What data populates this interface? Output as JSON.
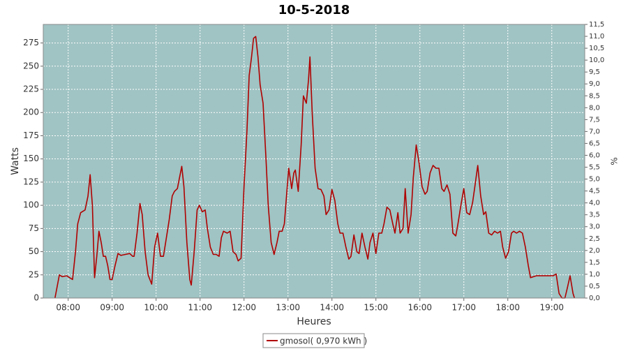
{
  "chart_data": {
    "type": "line",
    "title": "10-5-2018",
    "xlabel": "Heures",
    "ylabel": "Watts",
    "y2label": "%",
    "background": "#a0c3c3",
    "grid": true,
    "legend": "bottom",
    "xlim": [
      "07:26",
      "19:45"
    ],
    "xticks": [
      "08:00",
      "09:00",
      "10:00",
      "11:00",
      "12:00",
      "13:00",
      "14:00",
      "15:00",
      "16:00",
      "17:00",
      "18:00",
      "19:00"
    ],
    "ylim": [
      0,
      295
    ],
    "yticks": [
      0,
      25,
      50,
      75,
      100,
      125,
      150,
      175,
      200,
      225,
      250,
      275
    ],
    "y2lim": [
      0,
      11.5
    ],
    "y2ticks": [
      {
        "value": 0,
        "label": "0,0"
      },
      {
        "value": 0.5,
        "label": "0,5"
      },
      {
        "value": 1,
        "label": "1,0"
      },
      {
        "value": 1.5,
        "label": "1,5"
      },
      {
        "value": 2,
        "label": "2,0"
      },
      {
        "value": 2.5,
        "label": "2,5"
      },
      {
        "value": 3,
        "label": "3,0"
      },
      {
        "value": 3.5,
        "label": "3,5"
      },
      {
        "value": 4,
        "label": "4,0"
      },
      {
        "value": 4.5,
        "label": "4,5"
      },
      {
        "value": 5,
        "label": "5,0"
      },
      {
        "value": 5.5,
        "label": "5,5"
      },
      {
        "value": 6,
        "label": "6,0"
      },
      {
        "value": 6.5,
        "label": "6,5"
      },
      {
        "value": 7,
        "label": "7,0"
      },
      {
        "value": 7.5,
        "label": "7,5"
      },
      {
        "value": 8,
        "label": "8,0"
      },
      {
        "value": 8.5,
        "label": "8,5"
      },
      {
        "value": 9,
        "label": "9,0"
      },
      {
        "value": 9.5,
        "label": "9,5"
      },
      {
        "value": 10,
        "label": "10,0"
      },
      {
        "value": 10.5,
        "label": "10,5"
      },
      {
        "value": 11,
        "label": "11,0"
      },
      {
        "value": 11.5,
        "label": "11,5"
      }
    ],
    "x": [
      "07:42",
      "07:48",
      "07:52",
      "07:58",
      "08:02",
      "08:06",
      "08:10",
      "08:13",
      "08:17",
      "08:23",
      "08:27",
      "08:30",
      "08:33",
      "08:36",
      "08:39",
      "08:42",
      "08:45",
      "08:48",
      "08:51",
      "08:54",
      "08:57",
      "09:00",
      "09:04",
      "09:08",
      "09:12",
      "09:18",
      "09:24",
      "09:28",
      "09:30",
      "09:34",
      "09:38",
      "09:41",
      "09:45",
      "09:49",
      "09:54",
      "09:58",
      "10:02",
      "10:06",
      "10:10",
      "10:13",
      "10:18",
      "10:22",
      "10:25",
      "10:29",
      "10:32",
      "10:35",
      "10:38",
      "10:42",
      "10:46",
      "10:48",
      "10:52",
      "10:56",
      "10:59",
      "11:03",
      "11:07",
      "11:10",
      "11:14",
      "11:18",
      "11:22",
      "11:26",
      "11:29",
      "11:32",
      "11:37",
      "11:41",
      "11:45",
      "11:49",
      "11:52",
      "11:56",
      "12:00",
      "12:04",
      "12:07",
      "12:10",
      "12:13",
      "12:16",
      "12:19",
      "12:22",
      "12:26",
      "12:30",
      "12:33",
      "12:37",
      "12:41",
      "12:45",
      "12:48",
      "12:52",
      "12:55",
      "12:58",
      "13:01",
      "13:05",
      "13:08",
      "13:10",
      "13:14",
      "13:18",
      "13:21",
      "13:25",
      "13:28",
      "13:30",
      "13:33",
      "13:37",
      "13:41",
      "13:45",
      "13:49",
      "13:52",
      "13:56",
      "14:00",
      "14:04",
      "14:08",
      "14:11",
      "14:15",
      "14:19",
      "14:23",
      "14:26",
      "14:30",
      "14:34",
      "14:37",
      "14:41",
      "14:45",
      "14:49",
      "14:52",
      "14:56",
      "15:00",
      "15:04",
      "15:08",
      "15:11",
      "15:15",
      "15:19",
      "15:23",
      "15:26",
      "15:30",
      "15:33",
      "15:37",
      "15:40",
      "15:44",
      "15:48",
      "15:51",
      "15:55",
      "15:59",
      "16:03",
      "16:07",
      "16:10",
      "16:14",
      "16:18",
      "16:22",
      "16:26",
      "16:30",
      "16:33",
      "16:37",
      "16:41",
      "16:45",
      "16:49",
      "16:52",
      "16:56",
      "17:00",
      "17:04",
      "17:08",
      "17:12",
      "17:15",
      "17:19",
      "17:23",
      "17:27",
      "17:30",
      "17:34",
      "17:38",
      "17:42",
      "17:46",
      "17:50",
      "17:53",
      "17:57",
      "18:01",
      "18:05",
      "18:08",
      "18:12",
      "18:16",
      "18:20",
      "18:24",
      "18:28",
      "18:31",
      "18:35",
      "18:39",
      "18:45",
      "18:50",
      "18:56",
      "19:02",
      "19:06",
      "19:10",
      "19:14",
      "19:18",
      "19:21",
      "19:25",
      "19:29",
      "19:31"
    ],
    "series": [
      {
        "name": "gmosol( 0,970 kWh )",
        "color": "#b00000",
        "values": [
          0,
          25,
          23,
          24,
          22,
          20,
          50,
          80,
          92,
          95,
          110,
          133,
          100,
          22,
          45,
          72,
          60,
          45,
          45,
          35,
          20,
          20,
          35,
          48,
          46,
          47,
          48,
          45,
          45,
          70,
          102,
          90,
          50,
          25,
          15,
          55,
          70,
          45,
          45,
          60,
          85,
          110,
          115,
          118,
          130,
          142,
          120,
          60,
          20,
          14,
          50,
          95,
          100,
          93,
          95,
          75,
          55,
          47,
          47,
          45,
          65,
          72,
          70,
          72,
          50,
          47,
          40,
          43,
          120,
          180,
          240,
          258,
          280,
          282,
          260,
          230,
          210,
          150,
          100,
          60,
          47,
          60,
          72,
          72,
          80,
          110,
          140,
          118,
          135,
          138,
          115,
          165,
          218,
          210,
          235,
          260,
          200,
          140,
          118,
          117,
          110,
          90,
          95,
          117,
          105,
          80,
          70,
          70,
          55,
          42,
          45,
          68,
          50,
          48,
          70,
          55,
          42,
          60,
          70,
          48,
          70,
          70,
          80,
          98,
          95,
          80,
          70,
          92,
          70,
          75,
          118,
          70,
          90,
          130,
          165,
          145,
          120,
          112,
          115,
          135,
          143,
          140,
          140,
          118,
          115,
          122,
          112,
          70,
          67,
          80,
          100,
          118,
          92,
          90,
          103,
          120,
          143,
          110,
          90,
          93,
          70,
          68,
          72,
          70,
          72,
          55,
          43,
          50,
          70,
          72,
          70,
          72,
          70,
          55,
          35,
          22,
          23,
          24,
          24,
          24,
          24,
          24,
          26,
          5,
          0,
          0,
          10,
          24,
          5,
          0
        ]
      }
    ]
  }
}
